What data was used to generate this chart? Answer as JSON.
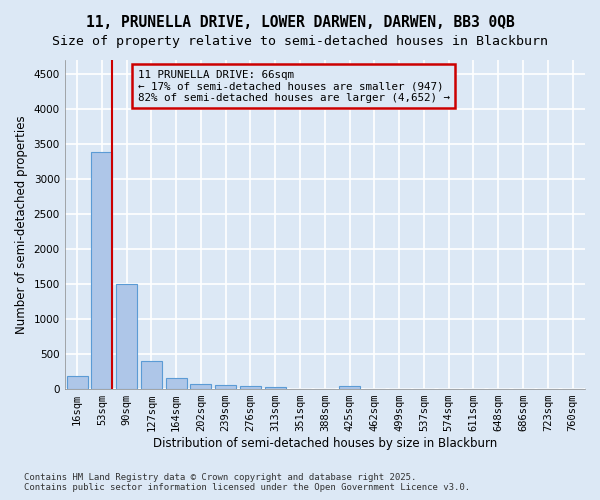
{
  "title_line1": "11, PRUNELLA DRIVE, LOWER DARWEN, DARWEN, BB3 0QB",
  "title_line2": "Size of property relative to semi-detached houses in Blackburn",
  "xlabel": "Distribution of semi-detached houses by size in Blackburn",
  "ylabel": "Number of semi-detached properties",
  "footer": "Contains HM Land Registry data © Crown copyright and database right 2025.\nContains public sector information licensed under the Open Government Licence v3.0.",
  "bar_labels": [
    "16sqm",
    "53sqm",
    "90sqm",
    "127sqm",
    "164sqm",
    "202sqm",
    "239sqm",
    "276sqm",
    "313sqm",
    "351sqm",
    "388sqm",
    "425sqm",
    "462sqm",
    "499sqm",
    "537sqm",
    "574sqm",
    "611sqm",
    "648sqm",
    "686sqm",
    "723sqm",
    "760sqm"
  ],
  "bar_values": [
    190,
    3380,
    1500,
    395,
    155,
    75,
    55,
    40,
    35,
    0,
    0,
    50,
    0,
    0,
    0,
    0,
    0,
    0,
    0,
    0,
    0
  ],
  "bar_color": "#aec6e8",
  "bar_edgecolor": "#5b9bd5",
  "vline_color": "#cc0000",
  "annotation_box_edgecolor": "#cc0000",
  "annotation_text_line1": "11 PRUNELLA DRIVE: 66sqm",
  "annotation_text_line2": "← 17% of semi-detached houses are smaller (947)",
  "annotation_text_line3": "82% of semi-detached houses are larger (4,652) →",
  "vline_x": 1.42,
  "ylim": [
    0,
    4700
  ],
  "yticks": [
    0,
    500,
    1000,
    1500,
    2000,
    2500,
    3000,
    3500,
    4000,
    4500
  ],
  "bg_color": "#dce8f5",
  "grid_color": "#ffffff",
  "title_fontsize": 10.5,
  "subtitle_fontsize": 9.5,
  "axis_label_fontsize": 8.5,
  "tick_fontsize": 7.5,
  "footer_fontsize": 6.5
}
